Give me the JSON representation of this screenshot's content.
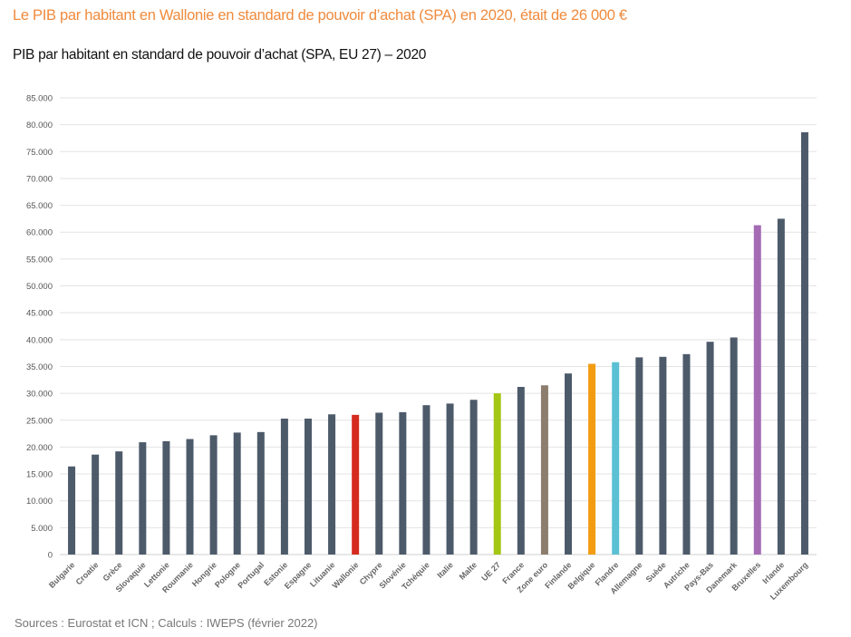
{
  "header": {
    "headline": "Le PIB par habitant en Wallonie en standard de pouvoir d’achat (SPA) en 2020, était de 26 000 €",
    "chart_title": "PIB par habitant en standard de pouvoir d’achat (SPA, EU 27) – 2020"
  },
  "footer": {
    "source": "Sources : Eurostat et ICN ; Calculs : IWEPS (février 2022)"
  },
  "colors": {
    "default_bar": "#4d5a6a",
    "wallonie": "#d52b1e",
    "ue27": "#a4c614",
    "zone_euro": "#8c7d6e",
    "belgique": "#f39c12",
    "flandre": "#5bc0d3",
    "bruxelles": "#a46bb4",
    "grid": "#e3e3e3"
  },
  "chart_data": {
    "type": "bar",
    "title": "PIB par habitant en standard de pouvoir d’achat (SPA, EU 27) – 2020",
    "xlabel": "",
    "ylabel": "",
    "ylim": [
      0,
      85000
    ],
    "grid": true,
    "legend": "none",
    "yticks": [
      {
        "value": 0,
        "label": "0"
      },
      {
        "value": 5000,
        "label": "5.000"
      },
      {
        "value": 10000,
        "label": "10.000"
      },
      {
        "value": 15000,
        "label": "15.000"
      },
      {
        "value": 20000,
        "label": "20.000"
      },
      {
        "value": 25000,
        "label": "25.000"
      },
      {
        "value": 30000,
        "label": "30.000"
      },
      {
        "value": 35000,
        "label": "35.000"
      },
      {
        "value": 40000,
        "label": "40.000"
      },
      {
        "value": 45000,
        "label": "45.000"
      },
      {
        "value": 50000,
        "label": "50.000"
      },
      {
        "value": 55000,
        "label": "55.000"
      },
      {
        "value": 60000,
        "label": "60.000"
      },
      {
        "value": 65000,
        "label": "65.000"
      },
      {
        "value": 70000,
        "label": "70.000"
      },
      {
        "value": 75000,
        "label": "75.000"
      },
      {
        "value": 80000,
        "label": "80.000"
      },
      {
        "value": 85000,
        "label": "85.000"
      }
    ],
    "categories": [
      "Bulgarie",
      "Croatie",
      "Grèce",
      "Slovaquie",
      "Lettonie",
      "Roumanie",
      "Hongrie",
      "Pologne",
      "Portugal",
      "Estonie",
      "Espagne",
      "Lituanie",
      "Wallonie",
      "Chypre",
      "Slovénie",
      "Tchéquie",
      "Italie",
      "Malte",
      "UE 27",
      "France",
      "Zone euro",
      "Finlande",
      "Belgique",
      "Flandre",
      "Allemagne",
      "Suède",
      "Autriche",
      "Pays-Bas",
      "Danemark",
      "Bruxelles",
      "Irlande",
      "Luxembourg"
    ],
    "values": [
      16400,
      18600,
      19200,
      20900,
      21100,
      21500,
      22200,
      22700,
      22800,
      25300,
      25300,
      26100,
      26000,
      26400,
      26500,
      27800,
      28100,
      28800,
      30000,
      31200,
      31500,
      33700,
      35500,
      35800,
      36700,
      36800,
      37300,
      39600,
      40400,
      61300,
      62500,
      78600
    ],
    "highlight": {
      "Wallonie": "wallonie",
      "UE 27": "ue27",
      "Zone euro": "zone_euro",
      "Belgique": "belgique",
      "Flandre": "flandre",
      "Bruxelles": "bruxelles"
    }
  }
}
